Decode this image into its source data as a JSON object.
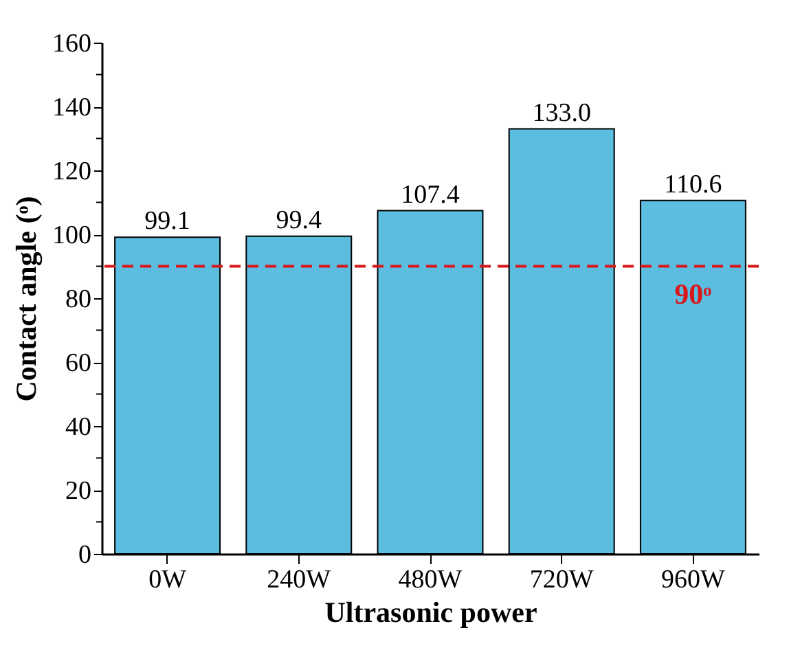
{
  "chart_data": {
    "type": "bar",
    "xlabel": "Ultrasonic power",
    "ylabel": "Contact angle (ᵒ)",
    "categories": [
      "0W",
      "240W",
      "480W",
      "720W",
      "960W"
    ],
    "values": [
      99.1,
      99.4,
      107.4,
      133.0,
      110.6
    ],
    "value_labels": [
      "99.1",
      "99.4",
      "107.4",
      "133.0",
      "110.6"
    ],
    "color": "#5bbde0",
    "ylim": [
      0,
      160
    ],
    "yticks": [
      0,
      {
        "value": 10,
        "label": null
      },
      20,
      {
        "value": 30,
        "label": null
      },
      40,
      {
        "value": 50,
        "label": null
      },
      60,
      {
        "value": 70,
        "label": null
      },
      80,
      {
        "value": 90,
        "label": null
      },
      100,
      {
        "value": 110,
        "label": null
      },
      120,
      {
        "value": 130,
        "label": null
      },
      140,
      {
        "value": 150,
        "label": null
      },
      160
    ],
    "ref_lines": [
      {
        "axis": "y",
        "value": 90,
        "label": "90ᵒ",
        "color": "#d7191c",
        "line_style": "dashed"
      }
    ],
    "grid": false
  }
}
